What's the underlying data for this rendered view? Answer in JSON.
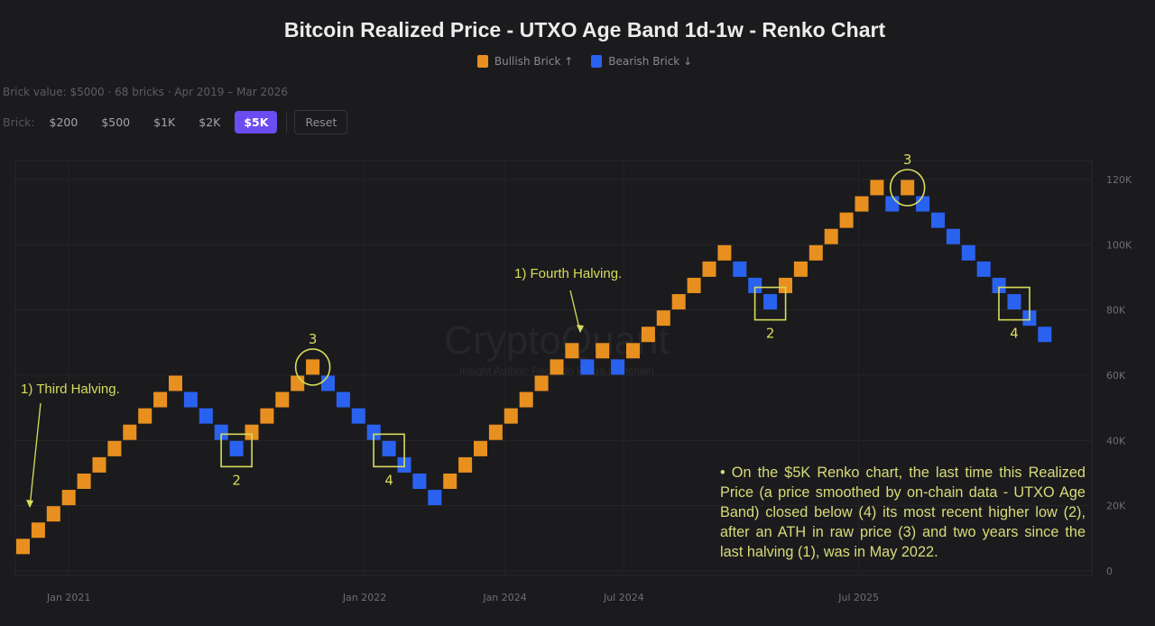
{
  "header": {
    "title": "Bitcoin Realized Price - UTXO Age Band 1d-1w - Renko Chart"
  },
  "legend": {
    "bullish": "Bullish Brick ↑",
    "bearish": "Bearish Brick ↓"
  },
  "info": "Brick value: $5000 · 68 bricks · Apr 2019 – Mar 2026",
  "toolbar": {
    "label": "Brick:",
    "options": [
      "$200",
      "$500",
      "$1K",
      "$2K",
      "$5K"
    ],
    "selected": "$5K",
    "reset": "Reset"
  },
  "watermark": {
    "brand": "CryptoQuant",
    "author": "Insight Author: Facundo Fraga | Onchain"
  },
  "colors": {
    "bullish": "#e8901f",
    "bearish": "#2a62f0",
    "annotation": "#d8dc5a",
    "background": "#1b1b1e"
  },
  "chart_data": {
    "type": "renko",
    "title": "Bitcoin Realized Price - UTXO Age Band 1d-1w - Renko Chart",
    "brick_size": 5000,
    "ylim": [
      0,
      125000
    ],
    "y_ticks": [
      {
        "value": 0,
        "label": "0"
      },
      {
        "value": 20000,
        "label": "20K"
      },
      {
        "value": 40000,
        "label": "40K"
      },
      {
        "value": 60000,
        "label": "60K"
      },
      {
        "value": 80000,
        "label": "80K"
      },
      {
        "value": 100000,
        "label": "100K"
      },
      {
        "value": 120000,
        "label": "120K"
      }
    ],
    "x_ticks": [
      {
        "brick": 3,
        "label": "Jan 2021"
      },
      {
        "brick": 22.4,
        "label": "Jan 2022"
      },
      {
        "brick": 31.6,
        "label": "Jan 2024"
      },
      {
        "brick": 39.4,
        "label": "Jul 2024"
      },
      {
        "brick": 54.8,
        "label": "Jul 2025"
      }
    ],
    "bricks_low": [
      5000,
      10000,
      15000,
      20000,
      25000,
      30000,
      35000,
      40000,
      45000,
      50000,
      55000,
      50000,
      45000,
      40000,
      35000,
      40000,
      45000,
      50000,
      55000,
      60000,
      55000,
      50000,
      45000,
      40000,
      35000,
      30000,
      25000,
      20000,
      25000,
      30000,
      35000,
      40000,
      45000,
      50000,
      55000,
      60000,
      65000,
      60000,
      65000,
      60000,
      65000,
      70000,
      75000,
      80000,
      85000,
      90000,
      95000,
      90000,
      85000,
      80000,
      85000,
      90000,
      95000,
      100000,
      105000,
      110000,
      115000,
      110000,
      115000,
      110000,
      105000,
      100000,
      95000,
      90000,
      85000,
      80000,
      75000,
      70000
    ],
    "bricks_dir": [
      "up",
      "up",
      "up",
      "up",
      "up",
      "up",
      "up",
      "up",
      "up",
      "up",
      "up",
      "down",
      "down",
      "down",
      "down",
      "up",
      "up",
      "up",
      "up",
      "up",
      "down",
      "down",
      "down",
      "down",
      "down",
      "down",
      "down",
      "down",
      "up",
      "up",
      "up",
      "up",
      "up",
      "up",
      "up",
      "up",
      "up",
      "down",
      "up",
      "down",
      "up",
      "up",
      "up",
      "up",
      "up",
      "up",
      "up",
      "down",
      "down",
      "down",
      "up",
      "up",
      "up",
      "up",
      "up",
      "up",
      "up",
      "down",
      "up",
      "down",
      "down",
      "down",
      "down",
      "down",
      "down",
      "down",
      "down",
      "down"
    ],
    "annotations": [
      {
        "text": "1) Third Halving.",
        "brick": 0,
        "shape": "arrow"
      },
      {
        "text": "2",
        "brick": 14,
        "shape": "box"
      },
      {
        "text": "3",
        "brick": 19,
        "shape": "circle"
      },
      {
        "text": "4",
        "brick": 24,
        "shape": "box"
      },
      {
        "text": "1) Fourth Halving.",
        "brick": 36,
        "shape": "arrow"
      },
      {
        "text": "2",
        "brick": 49,
        "shape": "box"
      },
      {
        "text": "3",
        "brick": 58,
        "shape": "circle"
      },
      {
        "text": "4",
        "brick": 65,
        "shape": "box"
      }
    ],
    "note": "• On the $5K Renko chart, the last time this Realized Price (a price smoothed by on-chain data - UTXO Age Band) closed below (4) its most recent higher low (2), after an ATH in raw price (3) and two years since the last halving (1), was in May 2022."
  }
}
